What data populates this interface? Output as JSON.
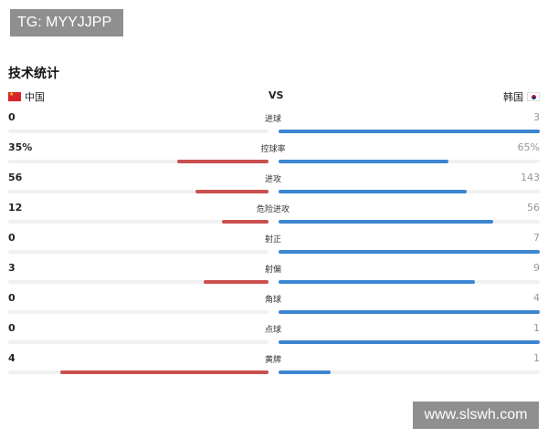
{
  "watermark_top": "TG: MYYJJPP",
  "watermark_bottom": "www.slswh.com",
  "title": "技术统计",
  "teams": {
    "left": "中国",
    "vs": "VS",
    "right": "韩国"
  },
  "colors": {
    "left_bar": "#c9504f",
    "right_bar": "#3c85d0",
    "track": "#f1f1f1"
  },
  "stats": [
    {
      "label": "进球",
      "left": "0",
      "right": "3",
      "left_frac": 0.0,
      "right_frac": 1.0
    },
    {
      "label": "控球率",
      "left": "35%",
      "right": "65%",
      "left_frac": 0.35,
      "right_frac": 0.65
    },
    {
      "label": "进攻",
      "left": "56",
      "right": "143",
      "left_frac": 0.28,
      "right_frac": 0.72
    },
    {
      "label": "危险进攻",
      "left": "12",
      "right": "56",
      "left_frac": 0.18,
      "right_frac": 0.82
    },
    {
      "label": "射正",
      "left": "0",
      "right": "7",
      "left_frac": 0.0,
      "right_frac": 1.0
    },
    {
      "label": "射偏",
      "left": "3",
      "right": "9",
      "left_frac": 0.25,
      "right_frac": 0.75
    },
    {
      "label": "角球",
      "left": "0",
      "right": "4",
      "left_frac": 0.0,
      "right_frac": 1.0
    },
    {
      "label": "点球",
      "left": "0",
      "right": "1",
      "left_frac": 0.0,
      "right_frac": 1.0
    },
    {
      "label": "黄牌",
      "left": "4",
      "right": "1",
      "left_frac": 0.8,
      "right_frac": 0.2
    }
  ]
}
